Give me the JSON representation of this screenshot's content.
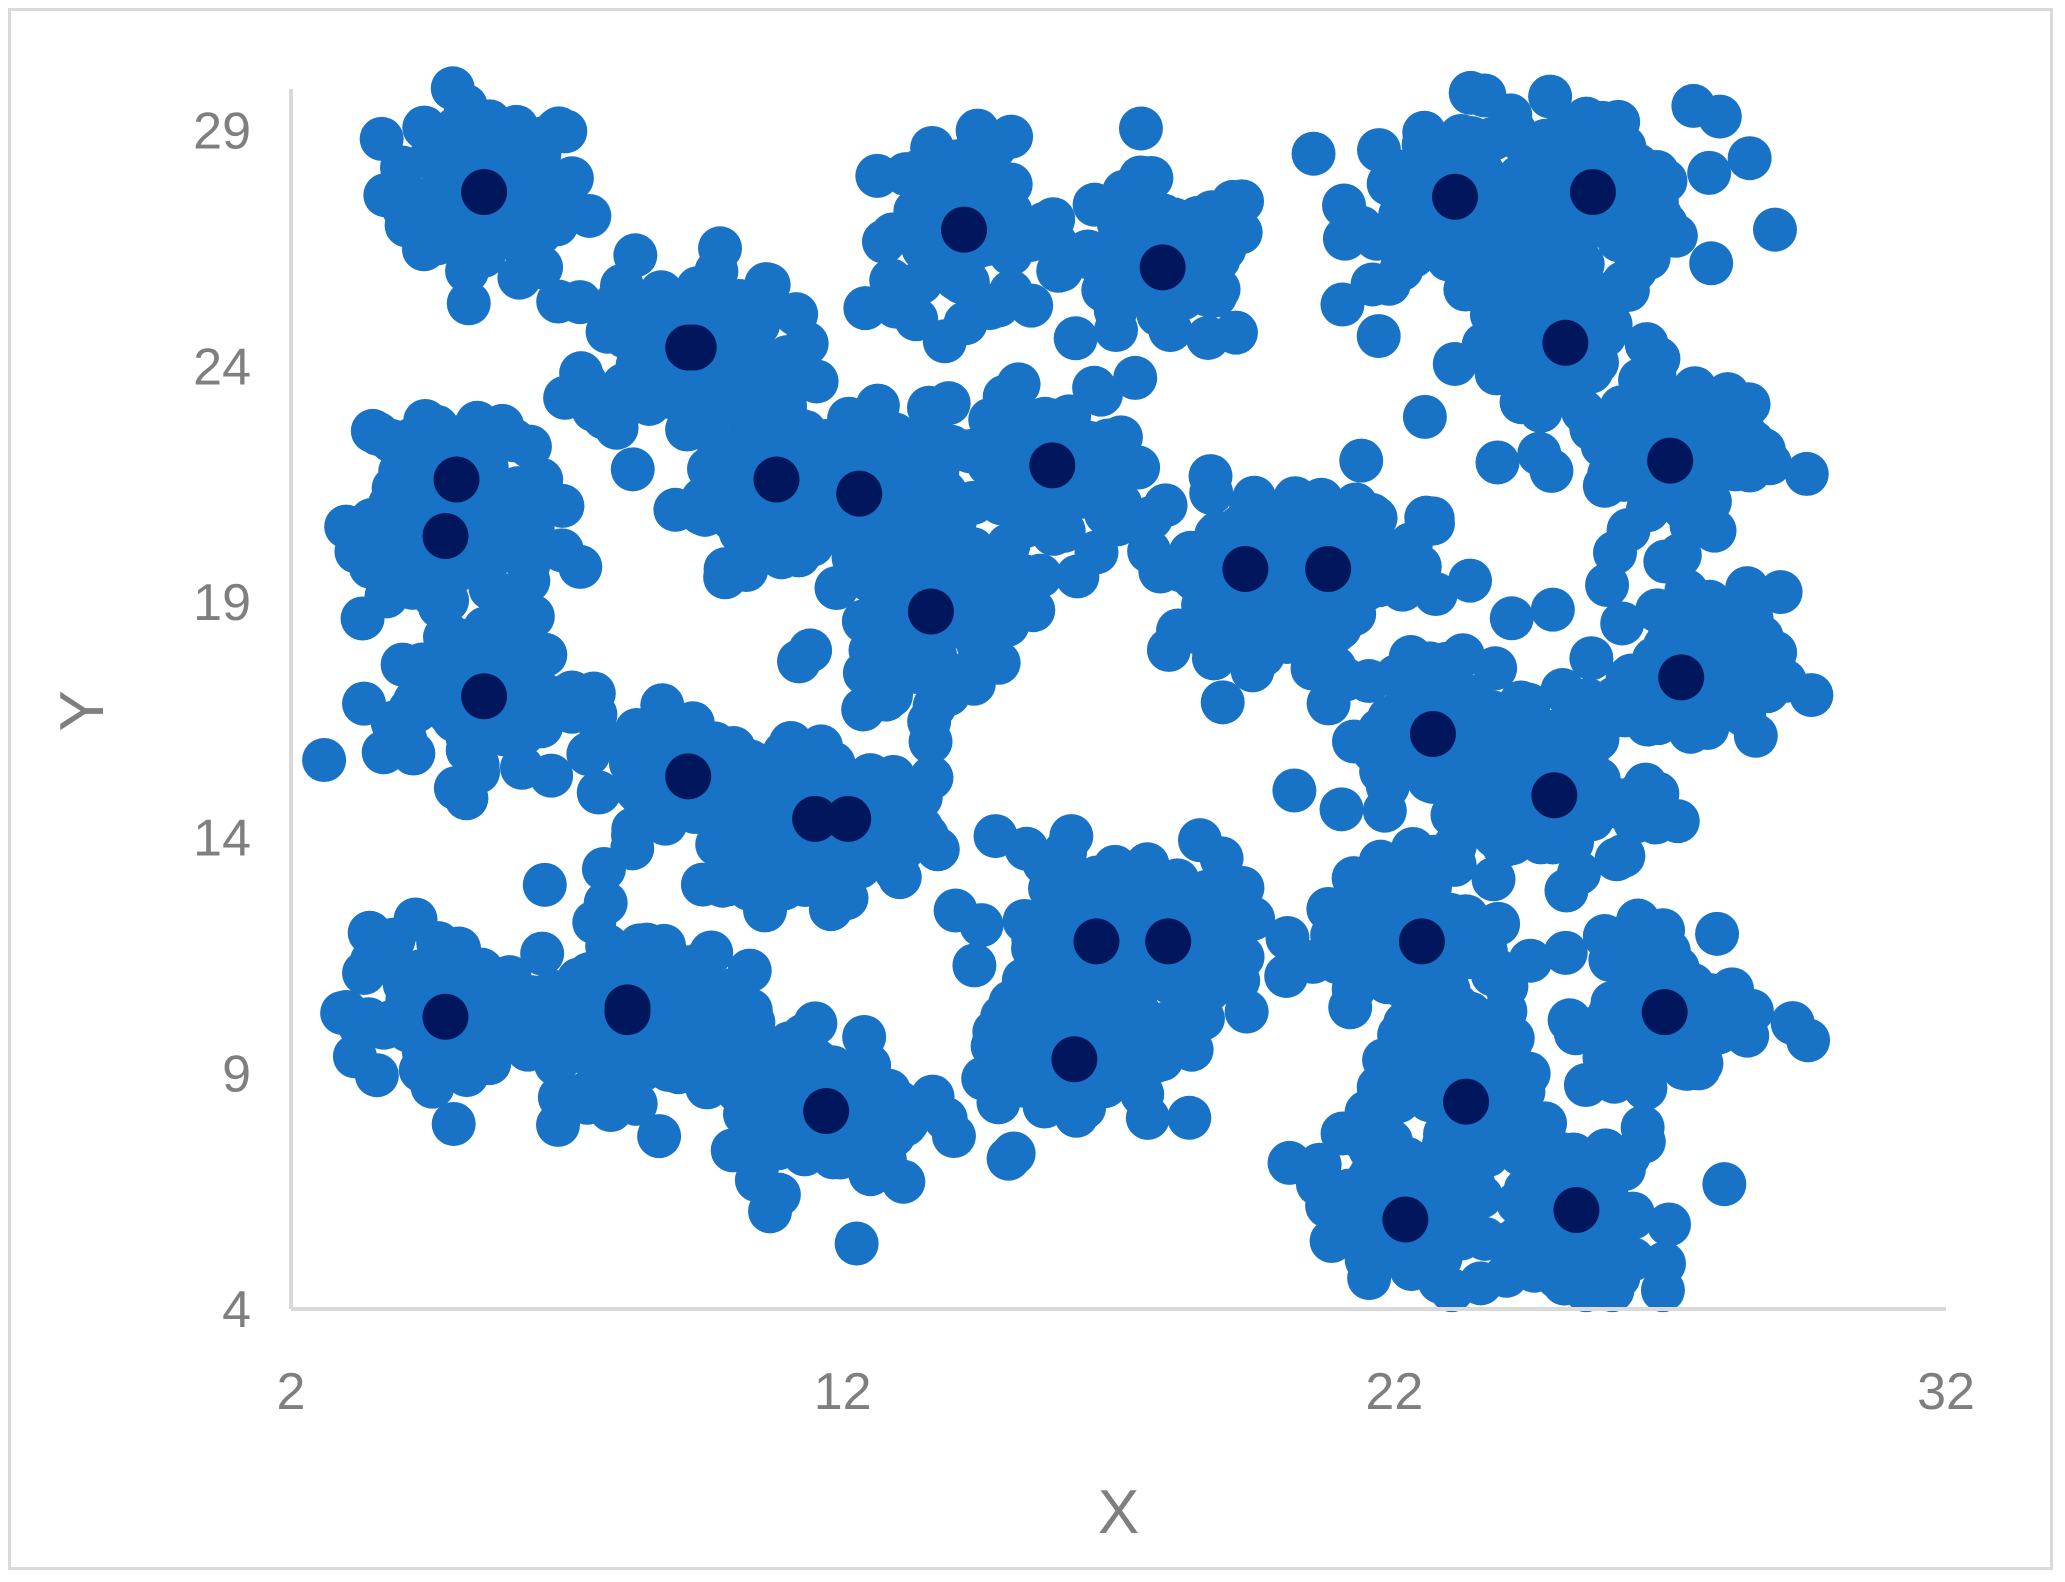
{
  "chart_data": {
    "type": "scatter",
    "title": "",
    "xlabel": "X",
    "ylabel": "Y",
    "xlim": [
      2,
      32
    ],
    "ylim": [
      4,
      30
    ],
    "x_ticks": [
      2,
      12,
      22,
      32
    ],
    "y_ticks": [
      4,
      9,
      14,
      19,
      24,
      29
    ],
    "grid": false,
    "legend": "none",
    "colors": {
      "points": "#1873c6",
      "centroids": "#00175e",
      "axis": "#d9d9d9",
      "text": "#7f7f7f"
    },
    "series": [
      {
        "role": "points",
        "spread": 0.9,
        "points_per_cluster": 70,
        "scattered_outliers": [
          [
            3,
            20.6
          ],
          [
            29.5,
            9.7
          ],
          [
            28.9,
            26.9
          ],
          [
            27.9,
            29.3
          ],
          [
            21.4,
            22
          ],
          [
            21.2,
            10.4
          ],
          [
            20.1,
            7.1
          ],
          [
            15.1,
            7.3
          ],
          [
            13.1,
            6.7
          ],
          [
            6.6,
            13
          ]
        ]
      },
      {
        "role": "centroids",
        "x": [
          5.5,
          9.3,
          10.8,
          14.2,
          17.8,
          23.1,
          25.6,
          5.0,
          9.2,
          12.3,
          15.8,
          19.3,
          25.1,
          27.0,
          4.8,
          12.1,
          13.6,
          20.8,
          27.2,
          5.5,
          9.2,
          11.5,
          16.6,
          22.7,
          24.9,
          4.8,
          8.1,
          17.9,
          22.5,
          26.9,
          8.1,
          11.7,
          16.2,
          23.3,
          22.2,
          25.3
        ],
        "y": [
          27.7,
          24.4,
          21.6,
          26.9,
          26.1,
          27.6,
          27.7,
          21.6,
          24.4,
          21.3,
          21.9,
          19.7,
          24.5,
          22.0,
          20.4,
          14.4,
          18.8,
          19.7,
          17.4,
          17.0,
          15.3,
          14.4,
          11.8,
          16.2,
          14.9,
          10.2,
          10.3,
          11.8,
          11.8,
          10.3,
          10.4,
          8.2,
          9.3,
          8.4,
          5.9,
          6.1
        ]
      }
    ]
  }
}
